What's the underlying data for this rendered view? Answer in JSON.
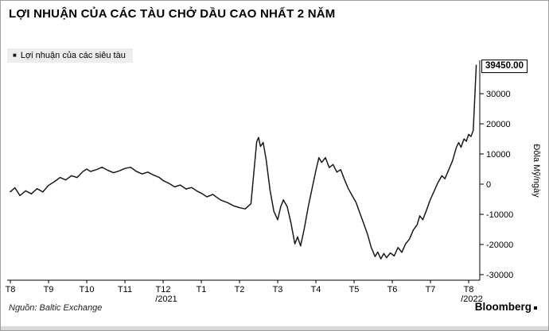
{
  "header": {
    "title": "LỢI NHUẬN CỦA CÁC TÀU CHỞ DẦU CAO NHẤT 2 NĂM"
  },
  "legend": {
    "marker": "■",
    "label": "Lợi nhuận của các siêu tàu"
  },
  "footer": {
    "source": "Nguồn: Baltic Exchange",
    "brand": "Bloomberg"
  },
  "chart_data": {
    "type": "line",
    "title": "LỢI NHUẬN CỦA CÁC TÀU CHỞ DẦU CAO NHẤT 2 NĂM",
    "legend_entries": [
      "Lợi nhuận của các siêu tàu"
    ],
    "ylabel": "Đôla Mỹ/ngày",
    "last_value_label": "39450.00",
    "line_color": "#1a1a1a",
    "ylim": [
      -30000,
      40000
    ],
    "grid": "off",
    "legend_position": "top-left",
    "y_ticks": [
      {
        "value": 30000,
        "label": "30000"
      },
      {
        "value": 20000,
        "label": "20000"
      },
      {
        "value": 10000,
        "label": "10000"
      },
      {
        "value": 0,
        "label": "0"
      },
      {
        "value": -10000,
        "label": "-10000"
      },
      {
        "value": -20000,
        "label": "-20000"
      },
      {
        "value": -30000,
        "label": "-30000"
      }
    ],
    "x_ticks": [
      {
        "m": 0,
        "label": "T8"
      },
      {
        "m": 1,
        "label": "T9"
      },
      {
        "m": 2,
        "label": "T10"
      },
      {
        "m": 3,
        "label": "T11"
      },
      {
        "m": 4,
        "label": "T12",
        "sub": "/2021"
      },
      {
        "m": 5,
        "label": "T1"
      },
      {
        "m": 6,
        "label": "T2"
      },
      {
        "m": 7,
        "label": "T3"
      },
      {
        "m": 8,
        "label": "T4"
      },
      {
        "m": 9,
        "label": "T5"
      },
      {
        "m": 10,
        "label": "T6"
      },
      {
        "m": 11,
        "label": "T7"
      },
      {
        "m": 12,
        "label": "T8",
        "sub": "/2022"
      }
    ],
    "series": [
      {
        "name": "Lợi nhuận của các siêu tàu",
        "unit": "USD/ngày",
        "points": [
          [
            0,
            -2500
          ],
          [
            0.12,
            -1200
          ],
          [
            0.25,
            -3800
          ],
          [
            0.4,
            -2200
          ],
          [
            0.55,
            -3200
          ],
          [
            0.7,
            -1500
          ],
          [
            0.85,
            -2600
          ],
          [
            1,
            -400
          ],
          [
            1.15,
            800
          ],
          [
            1.3,
            2200
          ],
          [
            1.45,
            1400
          ],
          [
            1.6,
            2800
          ],
          [
            1.75,
            2200
          ],
          [
            1.9,
            4200
          ],
          [
            2,
            5000
          ],
          [
            2.1,
            4200
          ],
          [
            2.25,
            4800
          ],
          [
            2.4,
            5600
          ],
          [
            2.55,
            4600
          ],
          [
            2.7,
            3800
          ],
          [
            2.85,
            4400
          ],
          [
            3,
            5200
          ],
          [
            3.15,
            5600
          ],
          [
            3.3,
            4200
          ],
          [
            3.45,
            3400
          ],
          [
            3.6,
            4000
          ],
          [
            3.75,
            3000
          ],
          [
            3.9,
            2200
          ],
          [
            4,
            1200
          ],
          [
            4.15,
            300
          ],
          [
            4.3,
            -900
          ],
          [
            4.45,
            -300
          ],
          [
            4.6,
            -1600
          ],
          [
            4.75,
            -1100
          ],
          [
            4.9,
            -2400
          ],
          [
            5,
            -3000
          ],
          [
            5.15,
            -4200
          ],
          [
            5.3,
            -3400
          ],
          [
            5.5,
            -5200
          ],
          [
            5.7,
            -6200
          ],
          [
            5.85,
            -7200
          ],
          [
            6,
            -7800
          ],
          [
            6.15,
            -8200
          ],
          [
            6.3,
            -6500
          ],
          [
            6.45,
            14000
          ],
          [
            6.5,
            15500
          ],
          [
            6.55,
            12500
          ],
          [
            6.62,
            13800
          ],
          [
            6.7,
            8000
          ],
          [
            6.8,
            -2000
          ],
          [
            6.9,
            -9000
          ],
          [
            7,
            -11800
          ],
          [
            7.08,
            -7500
          ],
          [
            7.15,
            -5200
          ],
          [
            7.25,
            -7500
          ],
          [
            7.35,
            -13000
          ],
          [
            7.45,
            -19800
          ],
          [
            7.52,
            -17500
          ],
          [
            7.6,
            -20500
          ],
          [
            7.7,
            -14500
          ],
          [
            7.8,
            -7500
          ],
          [
            7.9,
            -1500
          ],
          [
            8,
            4500
          ],
          [
            8.08,
            8800
          ],
          [
            8.15,
            7200
          ],
          [
            8.25,
            8800
          ],
          [
            8.35,
            5500
          ],
          [
            8.45,
            6500
          ],
          [
            8.55,
            4000
          ],
          [
            8.65,
            4800
          ],
          [
            8.75,
            1500
          ],
          [
            8.85,
            -1500
          ],
          [
            8.95,
            -3800
          ],
          [
            9.05,
            -6000
          ],
          [
            9.15,
            -9500
          ],
          [
            9.25,
            -13000
          ],
          [
            9.35,
            -16500
          ],
          [
            9.45,
            -21000
          ],
          [
            9.55,
            -24000
          ],
          [
            9.62,
            -22500
          ],
          [
            9.7,
            -24800
          ],
          [
            9.78,
            -23000
          ],
          [
            9.85,
            -24400
          ],
          [
            9.95,
            -22800
          ],
          [
            10.05,
            -23800
          ],
          [
            10.15,
            -21000
          ],
          [
            10.25,
            -22600
          ],
          [
            10.35,
            -19800
          ],
          [
            10.45,
            -18200
          ],
          [
            10.55,
            -15200
          ],
          [
            10.65,
            -13500
          ],
          [
            10.72,
            -10500
          ],
          [
            10.8,
            -11800
          ],
          [
            10.9,
            -8500
          ],
          [
            11,
            -5000
          ],
          [
            11.1,
            -2200
          ],
          [
            11.2,
            600
          ],
          [
            11.3,
            2800
          ],
          [
            11.38,
            1800
          ],
          [
            11.48,
            4800
          ],
          [
            11.58,
            7800
          ],
          [
            11.68,
            12200
          ],
          [
            11.74,
            13800
          ],
          [
            11.8,
            12200
          ],
          [
            11.88,
            15000
          ],
          [
            11.94,
            14200
          ],
          [
            12,
            16500
          ],
          [
            12.06,
            15800
          ],
          [
            12.12,
            17800
          ],
          [
            12.2,
            39450
          ]
        ]
      }
    ]
  }
}
